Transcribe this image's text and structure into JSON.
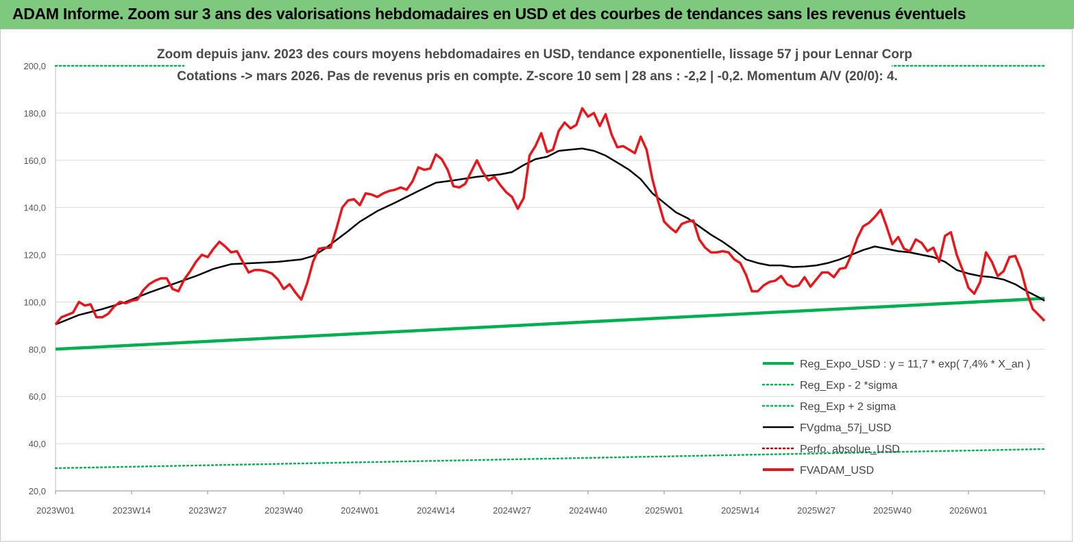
{
  "banner": {
    "title": "ADAM Informe. Zoom sur 3 ans des valorisations hebdomadaires en USD et des courbes de tendances sans les revenus éventuels"
  },
  "colors": {
    "banner_bg": "#7fc97f",
    "reg_green": "#00b050",
    "fv_red": "#e8161b",
    "fvgdma_black": "#000000",
    "perfo_red": "#c00000",
    "grid": "#d9d9d9"
  },
  "chart_data": {
    "type": "line",
    "title": "Zoom depuis janv. 2023 des cours moyens hebdomadaires en USD, tendance exponentielle, lissage 57 j pour Lennar Corp",
    "subtitle": "Cotations -> mars 2026. Pas de revenus pris en  compte. Z-score 10 sem  | 28 ans : -2,2 | -0,2. Momentum A/V (20/0): 4.",
    "xlabel": "",
    "ylabel": "",
    "ylim": [
      20,
      200
    ],
    "y_ticks": [
      "20,0",
      "40,0",
      "60,0",
      "80,0",
      "100,0",
      "120,0",
      "140,0",
      "160,0",
      "180,0",
      "200,0"
    ],
    "x_tick_labels": [
      "2023W01",
      "2023W14",
      "2023W27",
      "2023W40",
      "2024W01",
      "2024W14",
      "2024W27",
      "2024W40",
      "2025W01",
      "2025W14",
      "2025W27",
      "2025W40",
      "2026W01"
    ],
    "x_tick_positions_week": [
      0,
      13,
      26,
      39,
      52,
      65,
      78,
      91,
      104,
      117,
      130,
      143,
      156
    ],
    "x_range_week": [
      0,
      169
    ],
    "grid": true,
    "legend_position": "bottom-right",
    "series": [
      {
        "name": "Reg_Expo_USD : y = 11,7 * exp( 7,4% *  X_an )",
        "style": "solid-thick",
        "color": "#00b050",
        "points": [
          [
            0,
            80.0
          ],
          [
            169,
            101.5
          ]
        ]
      },
      {
        "name": "Reg_Exp - 2 *sigma",
        "style": "dotted",
        "color": "#00b050",
        "points": [
          [
            0,
            29.6
          ],
          [
            169,
            37.7
          ]
        ]
      },
      {
        "name": "Reg_Exp + 2 sigma",
        "style": "dotted",
        "color": "#00b050",
        "points": [
          [
            0,
            200.0
          ],
          [
            169,
            200.0
          ]
        ]
      },
      {
        "name": "FVgdma_57j_USD",
        "style": "solid",
        "color": "#000000",
        "points": [
          [
            0,
            90.5
          ],
          [
            4,
            94.5
          ],
          [
            8,
            97
          ],
          [
            12,
            100
          ],
          [
            16,
            104
          ],
          [
            20,
            107.5
          ],
          [
            24,
            111
          ],
          [
            27,
            114
          ],
          [
            30,
            116
          ],
          [
            34,
            116.5
          ],
          [
            38,
            117
          ],
          [
            42,
            118
          ],
          [
            44,
            119.5
          ],
          [
            46,
            122.5
          ],
          [
            50,
            130
          ],
          [
            52,
            134
          ],
          [
            55,
            138.5
          ],
          [
            58,
            142
          ],
          [
            62,
            147
          ],
          [
            65,
            150.5
          ],
          [
            68,
            151.5
          ],
          [
            72,
            153
          ],
          [
            76,
            154
          ],
          [
            78,
            155
          ],
          [
            80,
            158
          ],
          [
            82,
            160.5
          ],
          [
            84,
            161.5
          ],
          [
            86,
            164
          ],
          [
            88,
            164.5
          ],
          [
            90,
            165
          ],
          [
            92,
            164
          ],
          [
            94,
            162
          ],
          [
            96,
            159
          ],
          [
            98,
            156
          ],
          [
            100,
            152
          ],
          [
            102,
            146
          ],
          [
            104,
            142
          ],
          [
            106,
            138
          ],
          [
            108,
            135.5
          ],
          [
            110,
            132
          ],
          [
            112,
            128.5
          ],
          [
            114,
            125.5
          ],
          [
            116,
            122
          ],
          [
            118,
            118
          ],
          [
            120,
            116.5
          ],
          [
            122,
            115.5
          ],
          [
            124,
            115.5
          ],
          [
            126,
            114.8
          ],
          [
            128,
            115
          ],
          [
            130,
            115.5
          ],
          [
            132,
            116.5
          ],
          [
            134,
            118
          ],
          [
            136,
            120
          ],
          [
            138,
            122
          ],
          [
            140,
            123.5
          ],
          [
            142,
            122.5
          ],
          [
            144,
            121.5
          ],
          [
            146,
            121
          ],
          [
            148,
            120
          ],
          [
            150,
            119
          ],
          [
            152,
            117
          ],
          [
            154,
            113.5
          ],
          [
            156,
            112
          ],
          [
            158,
            111
          ],
          [
            160,
            110.5
          ],
          [
            162,
            109.5
          ],
          [
            164,
            107.5
          ],
          [
            166,
            104.5
          ],
          [
            168,
            102
          ],
          [
            169,
            100.5
          ]
        ]
      },
      {
        "name": "Perfo. absolue_USD",
        "style": "dotted",
        "color": "#c00000",
        "points": []
      },
      {
        "name": "FVADAM_USD",
        "style": "solid-thick",
        "color": "#e8161b",
        "points": [
          [
            0,
            90.5
          ],
          [
            1,
            93.5
          ],
          [
            2,
            94.5
          ],
          [
            3,
            95.5
          ],
          [
            4,
            100
          ],
          [
            5,
            98.5
          ],
          [
            6,
            99
          ],
          [
            7,
            93.5
          ],
          [
            8,
            93.5
          ],
          [
            9,
            95
          ],
          [
            10,
            98
          ],
          [
            11,
            100
          ],
          [
            12,
            99.5
          ],
          [
            13,
            100.5
          ],
          [
            14,
            101
          ],
          [
            15,
            105
          ],
          [
            16,
            107.5
          ],
          [
            17,
            109
          ],
          [
            18,
            110
          ],
          [
            19,
            110
          ],
          [
            20,
            105.5
          ],
          [
            21,
            104.5
          ],
          [
            22,
            109.5
          ],
          [
            23,
            113
          ],
          [
            24,
            117
          ],
          [
            25,
            120
          ],
          [
            26,
            119
          ],
          [
            27,
            122.5
          ],
          [
            28,
            125.5
          ],
          [
            29,
            123.5
          ],
          [
            30,
            121
          ],
          [
            31,
            121.5
          ],
          [
            32,
            117
          ],
          [
            33,
            112.5
          ],
          [
            34,
            113.5
          ],
          [
            35,
            113.5
          ],
          [
            36,
            113
          ],
          [
            37,
            112
          ],
          [
            38,
            109.5
          ],
          [
            39,
            105.5
          ],
          [
            40,
            107.5
          ],
          [
            41,
            104
          ],
          [
            42,
            101
          ],
          [
            43,
            108
          ],
          [
            44,
            117
          ],
          [
            45,
            122.5
          ],
          [
            46,
            123
          ],
          [
            47,
            123
          ],
          [
            48,
            131
          ],
          [
            49,
            140
          ],
          [
            50,
            143
          ],
          [
            51,
            143.5
          ],
          [
            52,
            141
          ],
          [
            53,
            146
          ],
          [
            54,
            145.5
          ],
          [
            55,
            144.5
          ],
          [
            56,
            146
          ],
          [
            57,
            147
          ],
          [
            58,
            147.5
          ],
          [
            59,
            148.5
          ],
          [
            60,
            147.5
          ],
          [
            61,
            151
          ],
          [
            62,
            157
          ],
          [
            63,
            156
          ],
          [
            64,
            156.5
          ],
          [
            65,
            162.5
          ],
          [
            66,
            160.5
          ],
          [
            67,
            156
          ],
          [
            68,
            149
          ],
          [
            69,
            148.5
          ],
          [
            70,
            150
          ],
          [
            71,
            155
          ],
          [
            72,
            160
          ],
          [
            73,
            155
          ],
          [
            74,
            151.5
          ],
          [
            75,
            153
          ],
          [
            76,
            149.5
          ],
          [
            77,
            146.5
          ],
          [
            78,
            144.5
          ],
          [
            79,
            139.5
          ],
          [
            80,
            144
          ],
          [
            81,
            162
          ],
          [
            82,
            166
          ],
          [
            83,
            171.5
          ],
          [
            84,
            163.5
          ],
          [
            85,
            164.5
          ],
          [
            86,
            172.5
          ],
          [
            87,
            176
          ],
          [
            88,
            173.5
          ],
          [
            89,
            175
          ],
          [
            90,
            182
          ],
          [
            91,
            178.5
          ],
          [
            92,
            180
          ],
          [
            93,
            174.5
          ],
          [
            94,
            179.5
          ],
          [
            95,
            171
          ],
          [
            96,
            165.5
          ],
          [
            97,
            166
          ],
          [
            98,
            164.5
          ],
          [
            99,
            163
          ],
          [
            100,
            170
          ],
          [
            101,
            164.5
          ],
          [
            102,
            152
          ],
          [
            103,
            142.5
          ],
          [
            104,
            134
          ],
          [
            105,
            131.5
          ],
          [
            106,
            129.5
          ],
          [
            107,
            133
          ],
          [
            108,
            134
          ],
          [
            109,
            134.5
          ],
          [
            110,
            126.5
          ],
          [
            111,
            123
          ],
          [
            112,
            121
          ],
          [
            113,
            121
          ],
          [
            114,
            121.5
          ],
          [
            115,
            121
          ],
          [
            116,
            118
          ],
          [
            117,
            116.5
          ],
          [
            118,
            111.5
          ],
          [
            119,
            104.5
          ],
          [
            120,
            104.5
          ],
          [
            121,
            107
          ],
          [
            122,
            108.5
          ],
          [
            123,
            109
          ],
          [
            124,
            111
          ],
          [
            125,
            107.5
          ],
          [
            126,
            106.5
          ],
          [
            127,
            107
          ],
          [
            128,
            110.5
          ],
          [
            129,
            106.5
          ],
          [
            130,
            109.5
          ],
          [
            131,
            112.5
          ],
          [
            132,
            112.5
          ],
          [
            133,
            110.5
          ],
          [
            134,
            114
          ],
          [
            135,
            114.5
          ],
          [
            136,
            120
          ],
          [
            137,
            127
          ],
          [
            138,
            132
          ],
          [
            139,
            133.5
          ],
          [
            140,
            136
          ],
          [
            141,
            139
          ],
          [
            142,
            132
          ],
          [
            143,
            124.5
          ],
          [
            144,
            127.5
          ],
          [
            145,
            122.5
          ],
          [
            146,
            121.5
          ],
          [
            147,
            126.5
          ],
          [
            148,
            125
          ],
          [
            149,
            121.5
          ],
          [
            150,
            123
          ],
          [
            151,
            117
          ],
          [
            152,
            128
          ],
          [
            153,
            129.5
          ],
          [
            154,
            120
          ],
          [
            155,
            113.5
          ],
          [
            156,
            106
          ],
          [
            157,
            103.5
          ],
          [
            158,
            108.5
          ],
          [
            159,
            121
          ],
          [
            160,
            117
          ],
          [
            161,
            111
          ],
          [
            162,
            113
          ],
          [
            163,
            119
          ],
          [
            164,
            119.5
          ],
          [
            165,
            113.5
          ],
          [
            166,
            104
          ],
          [
            167,
            97
          ],
          [
            168,
            94.5
          ],
          [
            169,
            92
          ]
        ]
      }
    ]
  }
}
